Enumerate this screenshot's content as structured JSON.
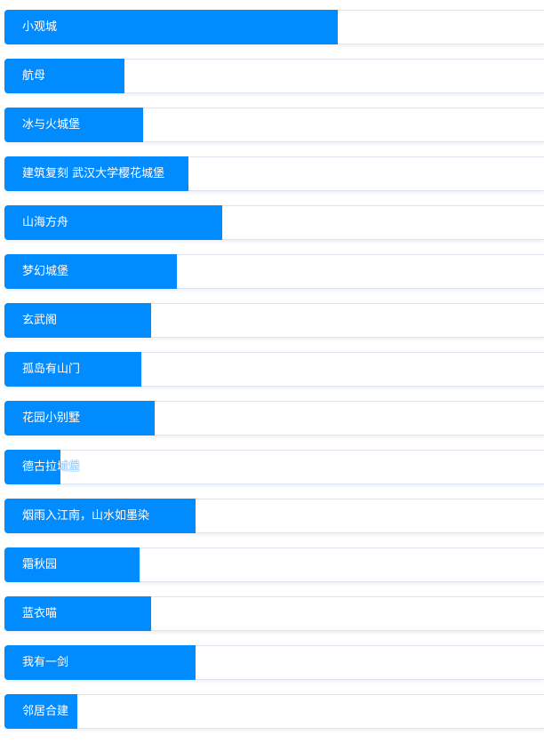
{
  "colors": {
    "fill": "#008cff",
    "track": "#ffffff",
    "border": "#dfe5ef"
  },
  "items": [
    {
      "label": "小观城",
      "progress": 61.8
    },
    {
      "label": "航母",
      "progress": 22.2
    },
    {
      "label": "冰与火城堡",
      "progress": 25.7
    },
    {
      "label": "建筑复刻 武汉大学樱花城堡",
      "progress": 34.1
    },
    {
      "label": "山海方舟",
      "progress": 40.4
    },
    {
      "label": "梦幻城堡",
      "progress": 32.0
    },
    {
      "label": "玄武阁",
      "progress": 27.2
    },
    {
      "label": "孤岛有山门",
      "progress": 25.4
    },
    {
      "label": "花园小别墅",
      "progress": 27.8
    },
    {
      "label": "德古拉城堡",
      "progress": 10.4
    },
    {
      "label": "烟雨入江南，山水如墨染",
      "progress": 35.4
    },
    {
      "label": "霜秋园",
      "progress": 25.0
    },
    {
      "label": "蓝衣喵",
      "progress": 27.2
    },
    {
      "label": "我有一剑",
      "progress": 35.4
    },
    {
      "label": "邻居合建",
      "progress": 13.5
    }
  ]
}
